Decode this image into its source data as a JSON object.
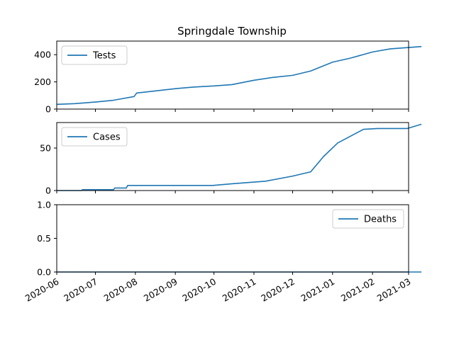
{
  "chart_data": {
    "type": "line",
    "title": "Springdale Township",
    "x_type": "date",
    "x_range": [
      "2020-06-01",
      "2021-03-01"
    ],
    "x_ticks": [
      "2020-06",
      "2020-07",
      "2020-08",
      "2020-09",
      "2020-10",
      "2020-11",
      "2020-12",
      "2021-01",
      "2021-02",
      "2021-03"
    ],
    "sharex": true,
    "grid": false,
    "color": "#1f77b4",
    "panels": [
      {
        "series_name": "Tests",
        "ylim": [
          0,
          500
        ],
        "yticks": [
          "0",
          "200",
          "400"
        ],
        "ytick_values": [
          0,
          200,
          400
        ],
        "legend_position": "upper-left",
        "points": [
          [
            "2020-06-01",
            35
          ],
          [
            "2020-06-15",
            40
          ],
          [
            "2020-07-01",
            52
          ],
          [
            "2020-07-15",
            65
          ],
          [
            "2020-07-31",
            92
          ],
          [
            "2020-08-02",
            118
          ],
          [
            "2020-08-15",
            132
          ],
          [
            "2020-09-01",
            150
          ],
          [
            "2020-09-15",
            162
          ],
          [
            "2020-10-01",
            170
          ],
          [
            "2020-10-15",
            180
          ],
          [
            "2020-11-01",
            212
          ],
          [
            "2020-11-15",
            232
          ],
          [
            "2020-12-01",
            248
          ],
          [
            "2020-12-15",
            280
          ],
          [
            "2021-01-01",
            345
          ],
          [
            "2021-01-15",
            375
          ],
          [
            "2021-02-01",
            420
          ],
          [
            "2021-02-15",
            443
          ],
          [
            "2021-03-01",
            453
          ],
          [
            "2021-03-11",
            460
          ]
        ]
      },
      {
        "series_name": "Cases",
        "ylim": [
          0,
          80
        ],
        "yticks": [
          "0",
          "50"
        ],
        "ytick_values": [
          0,
          50
        ],
        "legend_position": "upper-left",
        "points": [
          [
            "2020-06-01",
            0
          ],
          [
            "2020-06-20",
            0
          ],
          [
            "2020-06-21",
            1
          ],
          [
            "2020-07-15",
            1
          ],
          [
            "2020-07-16",
            3
          ],
          [
            "2020-07-25",
            3
          ],
          [
            "2020-07-26",
            6
          ],
          [
            "2020-09-30",
            6
          ],
          [
            "2020-10-15",
            8
          ],
          [
            "2020-11-10",
            11
          ],
          [
            "2020-12-01",
            17
          ],
          [
            "2020-12-15",
            22
          ],
          [
            "2020-12-25",
            40
          ],
          [
            "2021-01-05",
            56
          ],
          [
            "2021-01-15",
            64
          ],
          [
            "2021-01-25",
            72
          ],
          [
            "2021-02-05",
            73
          ],
          [
            "2021-02-28",
            73
          ],
          [
            "2021-03-11",
            78
          ]
        ]
      },
      {
        "series_name": "Deaths",
        "ylim": [
          0,
          1
        ],
        "yticks": [
          "0.0",
          "0.5",
          "1.0"
        ],
        "ytick_values": [
          0,
          0.5,
          1
        ],
        "legend_position": "upper-right",
        "points": [
          [
            "2020-06-01",
            0
          ],
          [
            "2021-03-11",
            0
          ]
        ]
      }
    ]
  }
}
